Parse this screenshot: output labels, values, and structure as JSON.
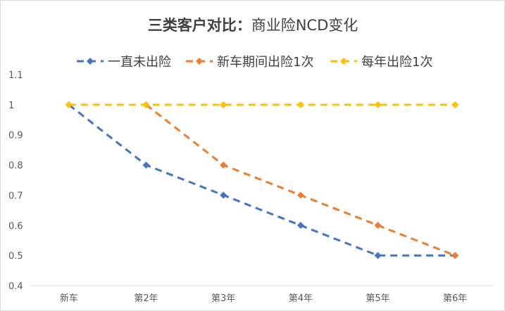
{
  "chart_data": {
    "type": "line",
    "title_bold": "三类客户对比：",
    "title_rest": "商业险NCD变化",
    "categories": [
      "新车",
      "第2年",
      "第3年",
      "第4年",
      "第5年",
      "第6年"
    ],
    "ylim": [
      0.4,
      1.1
    ],
    "yticks": [
      "0.4",
      "0.5",
      "0.6",
      "0.7",
      "0.8",
      "0.9",
      "1",
      "1.1"
    ],
    "grid": false,
    "legend_position": "top",
    "series": [
      {
        "name": "一直未出险",
        "color": "#4472C4",
        "values": [
          1,
          0.8,
          0.7,
          0.6,
          0.5,
          0.5
        ]
      },
      {
        "name": "新车期间出险1次",
        "color": "#ED7D31",
        "values": [
          null,
          1,
          0.8,
          0.7,
          0.6,
          0.5
        ]
      },
      {
        "name": "每年出险1次",
        "color": "#FFC000",
        "values": [
          1,
          1,
          1,
          1,
          1,
          1
        ]
      }
    ]
  }
}
